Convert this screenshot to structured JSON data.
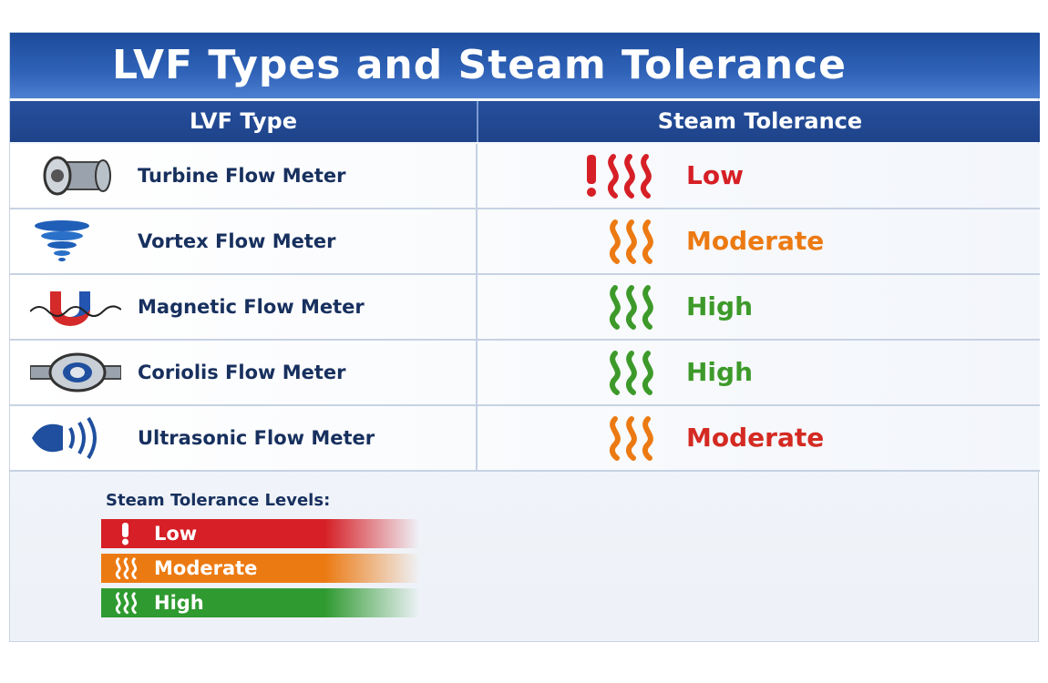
{
  "header": {
    "title": "LVF Types and Steam Tolerance"
  },
  "table": {
    "columns": [
      "LVF Type",
      "Steam Tolerance"
    ],
    "rows": [
      [
        "Turbine Flow Meter",
        "Low"
      ],
      [
        "Vortex Flow Meter",
        "Moderate"
      ],
      [
        "Magnetic Flow Meter",
        "High"
      ],
      [
        "Coriolis Flow Meter",
        "High"
      ],
      [
        "Ultrasonic Flow Meter",
        "Moderate"
      ]
    ]
  },
  "legend": {
    "title": "Steam Tolerance Levels:",
    "items": [
      "Low",
      "Moderate",
      "High"
    ]
  }
}
